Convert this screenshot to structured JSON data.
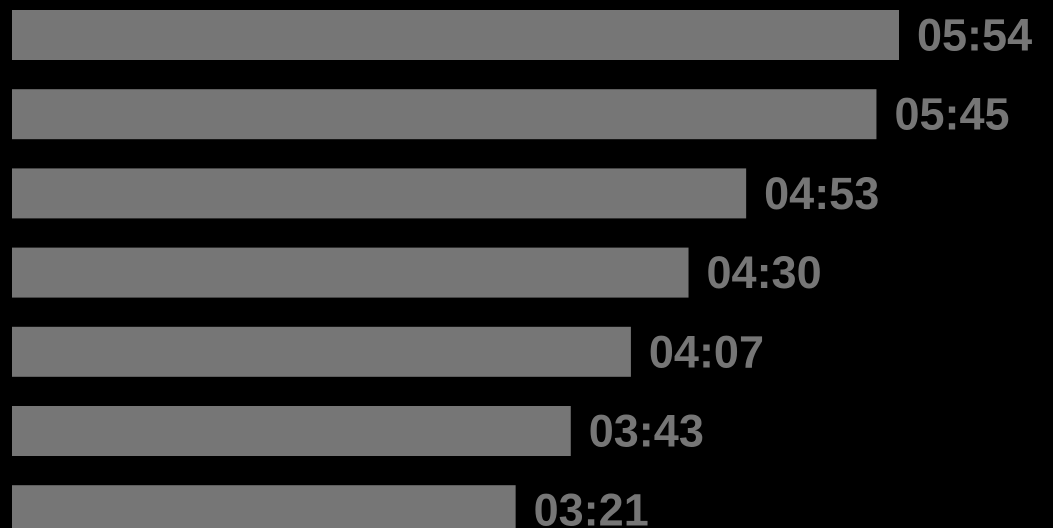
{
  "colors": {
    "background": "#000000",
    "bar": "#767676",
    "label": "#767676"
  },
  "chart_data": {
    "type": "bar",
    "orientation": "horizontal",
    "categories": [],
    "series": [
      {
        "values_seconds": [
          354,
          345,
          293,
          270,
          247,
          223,
          201
        ],
        "labels": [
          "05:54",
          "05:45",
          "04:53",
          "04:30",
          "04:07",
          "03:43",
          "03:21"
        ]
      }
    ],
    "title": "",
    "xlabel": "",
    "ylabel": "",
    "grid": false,
    "legend": "none"
  }
}
